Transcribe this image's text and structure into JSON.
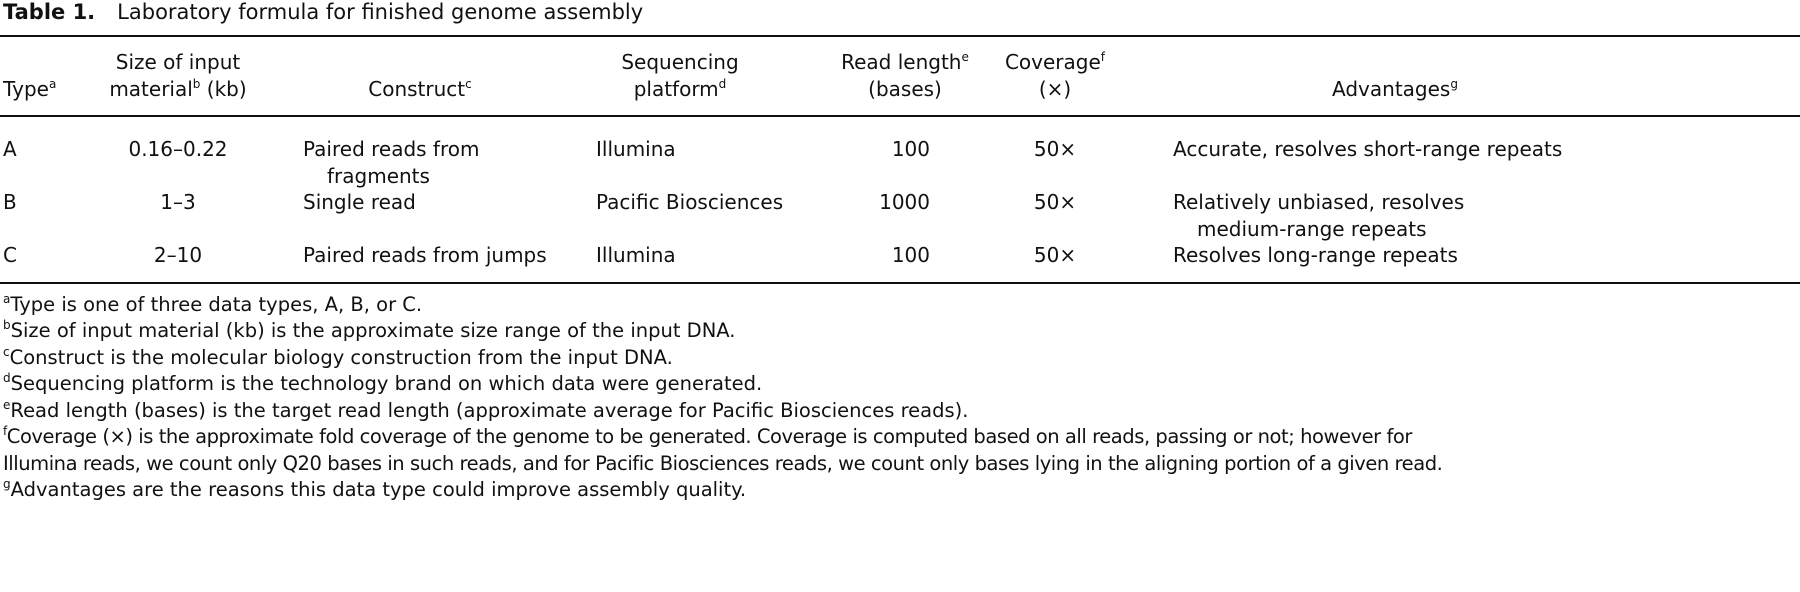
{
  "table": {
    "label": "Table 1.",
    "title": "Laboratory formula for finished genome assembly",
    "headers": [
      {
        "lines": [
          "Type"
        ],
        "sup": "a"
      },
      {
        "lines": [
          "Size of input",
          "material"
        ],
        "sup": "b",
        "suffix": " (kb)"
      },
      {
        "lines": [
          "Construct"
        ],
        "sup": "c"
      },
      {
        "lines": [
          "Sequencing",
          "platform"
        ],
        "sup": "d"
      },
      {
        "lines": [
          "Read length",
          "(bases)"
        ],
        "sup": "e"
      },
      {
        "lines": [
          "Coverage",
          "(×)"
        ],
        "sup": "f"
      },
      {
        "lines": [
          "Advantages"
        ],
        "sup": "g"
      }
    ],
    "rows": [
      {
        "type": "A",
        "size": "0.16–0.22",
        "construct": [
          "Paired reads from",
          "fragments"
        ],
        "platform": "Illumina",
        "read_length": "100",
        "coverage": "50×",
        "advantages": [
          "Accurate, resolves short-range repeats"
        ]
      },
      {
        "type": "B",
        "size": "1–3",
        "construct": [
          "Single read"
        ],
        "platform": "Pacific Biosciences",
        "read_length": "1000",
        "coverage": "50×",
        "advantages": [
          "Relatively unbiased, resolves",
          "medium-range repeats"
        ]
      },
      {
        "type": "C",
        "size": "2–10",
        "construct": [
          "Paired reads from jumps"
        ],
        "platform": "Illumina",
        "read_length": "100",
        "coverage": "50×",
        "advantages": [
          "Resolves long-range repeats"
        ]
      }
    ],
    "footnotes": [
      {
        "mark": "a",
        "text": "Type is one of three data types, A, B, or C."
      },
      {
        "mark": "b",
        "text": "Size of input material (kb) is the approximate size range of the input DNA."
      },
      {
        "mark": "c",
        "text": "Construct is the molecular biology construction from the input DNA."
      },
      {
        "mark": "d",
        "text": "Sequencing platform is the technology brand on which data were generated."
      },
      {
        "mark": "e",
        "text": "Read length (bases) is the target read length (approximate average for Pacific Biosciences reads)."
      },
      {
        "mark": "f",
        "text": "Coverage (×) is the approximate fold coverage of the genome to be generated. Coverage is computed based on all reads, passing or not; however for",
        "cont": "Illumina reads, we count only Q20 bases in such reads, and for Pacific Biosciences reads, we count only bases lying in the aligning portion of a given read."
      },
      {
        "mark": "g",
        "text": "Advantages are the reasons this data type could improve assembly quality."
      }
    ]
  }
}
